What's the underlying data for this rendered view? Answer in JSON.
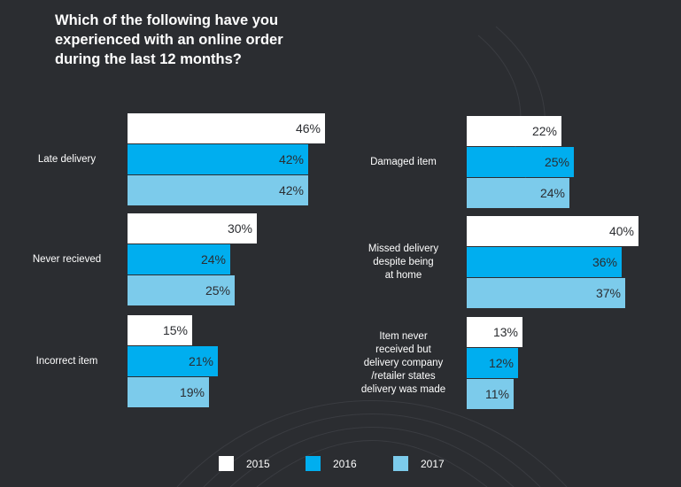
{
  "title_lines": [
    "Which of the following have you",
    "experienced with an online order",
    "during the last 12 months?"
  ],
  "colors": {
    "2015": "#ffffff",
    "2016": "#00aeef",
    "2017": "#7ccbeb",
    "background": "#2b2d31"
  },
  "legend": [
    "2015",
    "2016",
    "2017"
  ],
  "chart_data": {
    "type": "bar",
    "orientation": "horizontal",
    "title": "Which of the following have you experienced with an online order during the last 12 months?",
    "unit": "%",
    "series_names": [
      "2015",
      "2016",
      "2017"
    ],
    "groups": [
      {
        "label_lines": [
          "Late delivery"
        ],
        "values": [
          46,
          42,
          42
        ],
        "labels": [
          "46%",
          "42%",
          "42%"
        ]
      },
      {
        "label_lines": [
          "Never recieved"
        ],
        "values": [
          30,
          24,
          25
        ],
        "labels": [
          "30%",
          "24%",
          "25%"
        ]
      },
      {
        "label_lines": [
          "Incorrect item"
        ],
        "values": [
          15,
          21,
          19
        ],
        "labels": [
          "15%",
          "21%",
          "19%"
        ]
      },
      {
        "label_lines": [
          "Damaged item"
        ],
        "values": [
          22,
          25,
          24
        ],
        "labels": [
          "22%",
          "25%",
          "24%"
        ]
      },
      {
        "label_lines": [
          "Missed delivery",
          "despite being",
          "at home"
        ],
        "values": [
          40,
          36,
          37
        ],
        "labels": [
          "40%",
          "36%",
          "37%"
        ]
      },
      {
        "label_lines": [
          "Item never",
          "received but",
          "delivery company",
          "/retailer states",
          "delivery was made"
        ],
        "values": [
          13,
          12,
          11
        ],
        "labels": [
          "13%",
          "12%",
          "11%"
        ]
      }
    ]
  }
}
